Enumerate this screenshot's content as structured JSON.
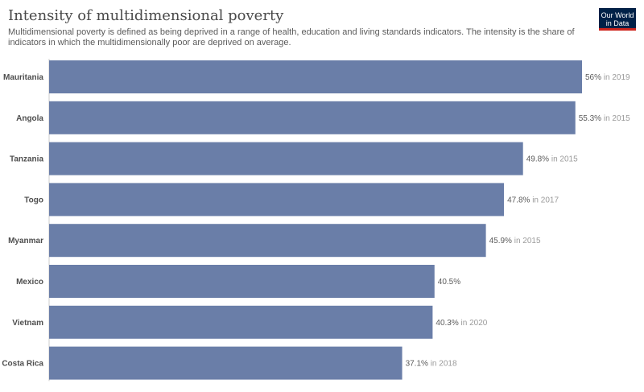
{
  "header": {
    "title": "Intensity of multidimensional poverty",
    "subtitle": "Multidimensional poverty is defined as being deprived in a range of health, education and living standards indicators. The intensity is the share of indicators in which the multidimensionally poor are deprived on average."
  },
  "logo": {
    "line1": "Our World",
    "line2": "in Data",
    "bg_color": "#002147",
    "accent_color": "#ce261e"
  },
  "chart_data": {
    "type": "bar",
    "orientation": "horizontal",
    "title": "Intensity of multidimensional poverty",
    "subtitle": "Multidimensional poverty is defined as being deprived in a range of health, education and living standards indicators. The intensity is the share of indicators in which the multidimensionally poor are deprived on average.",
    "categories": [
      "Mauritania",
      "Angola",
      "Tanzania",
      "Togo",
      "Myanmar",
      "Mexico",
      "Vietnam",
      "Costa Rica"
    ],
    "values": [
      56,
      55.3,
      49.8,
      47.8,
      45.9,
      40.5,
      40.3,
      37.1
    ],
    "value_labels": [
      "56%",
      "55.3%",
      "49.8%",
      "47.8%",
      "45.9%",
      "40.5%",
      "40.3%",
      "37.1%"
    ],
    "year_labels": [
      "in 2019",
      "in 2015",
      "in 2015",
      "in 2017",
      "in 2015",
      "",
      "in 2020",
      "in 2018"
    ],
    "unit": "%",
    "xlim": [
      0,
      56
    ],
    "bar_color": "#6a7ea8",
    "grid": false,
    "legend": "none"
  }
}
